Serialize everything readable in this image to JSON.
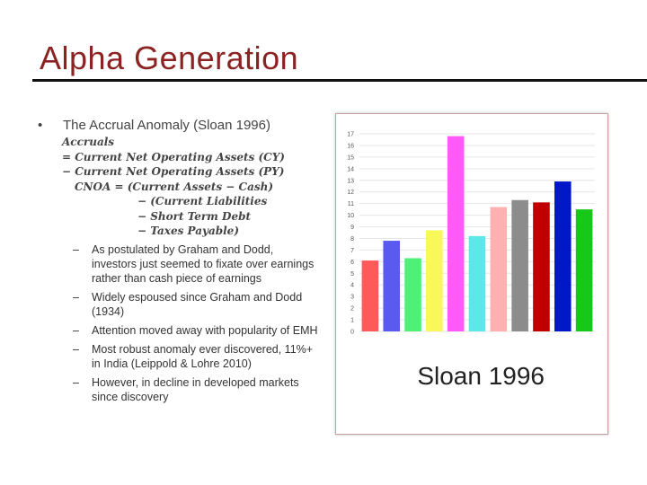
{
  "slide": {
    "title": "Alpha Generation"
  },
  "content": {
    "bullet_text": "The Accrual Anomaly (Sloan 1996)",
    "formula_lines": [
      "Accruals",
      "= Current Net Operating Assets (CY)",
      "− Current Net Operating Assets (PY)",
      "CNOA = (Current Assets − Cash)",
      "− (Current Liabilities",
      "− Short Term Debt",
      "− Taxes Payable)"
    ],
    "sub_bullets": [
      "As postulated by Graham and Dodd, investors just seemed to fixate over earnings rather than cash piece of earnings",
      "Widely espoused since Graham and Dodd (1934)",
      "Attention moved away with popularity of EMH",
      "Most robust anomaly ever discovered, 11%+ in India (Leippold & Lohre 2010)",
      "However, in decline in developed markets since discovery"
    ]
  },
  "chart_data": {
    "type": "bar",
    "title": "",
    "caption": "Sloan 1996",
    "xlabel": "",
    "ylabel": "",
    "ylim": [
      0,
      17
    ],
    "y_ticks": [
      0,
      1,
      2,
      3,
      4,
      5,
      6,
      7,
      8,
      9,
      10,
      11,
      12,
      13,
      14,
      15,
      16,
      17
    ],
    "grid": true,
    "values": [
      6.1,
      7.8,
      6.3,
      8.7,
      16.8,
      8.2,
      10.7,
      11.3,
      11.1,
      12.9,
      10.5
    ],
    "colors": [
      "#ff5a5a",
      "#5a5af0",
      "#4ef078",
      "#f8f858",
      "#ff5af8",
      "#5ae8e8",
      "#ffb0b0",
      "#8c8c8c",
      "#c00000",
      "#0018c8",
      "#18c818"
    ]
  }
}
